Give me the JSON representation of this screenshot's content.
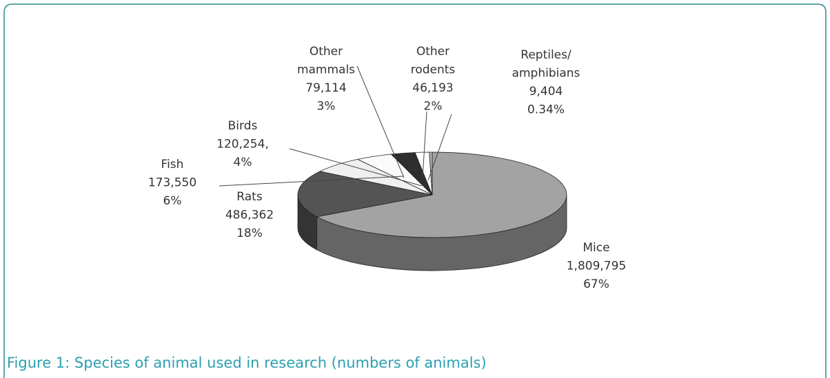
{
  "chart_data": {
    "type": "pie3d",
    "caption": "Figure 1: Species of animal used in research (numbers of animals)",
    "categories": [
      "Mice",
      "Rats",
      "Fish",
      "Birds",
      "Other mammals",
      "Other rodents",
      "Reptiles/amphibians"
    ],
    "values": [
      1809795,
      486362,
      173550,
      120254,
      79114,
      46193,
      9404
    ],
    "value_labels": [
      "1,809,795",
      "486,362",
      "173,550",
      "120,254,",
      "79,114",
      "46,193",
      "9,404"
    ],
    "percent_labels": [
      "67%",
      "18%",
      "6%",
      "4%",
      "3%",
      "2%",
      "0.34%"
    ],
    "colors": [
      "#a3a3a3",
      "#545454",
      "#efefef",
      "#fafafa",
      "#2e2e2e",
      "#ffffff",
      "#b4b4b4"
    ]
  }
}
